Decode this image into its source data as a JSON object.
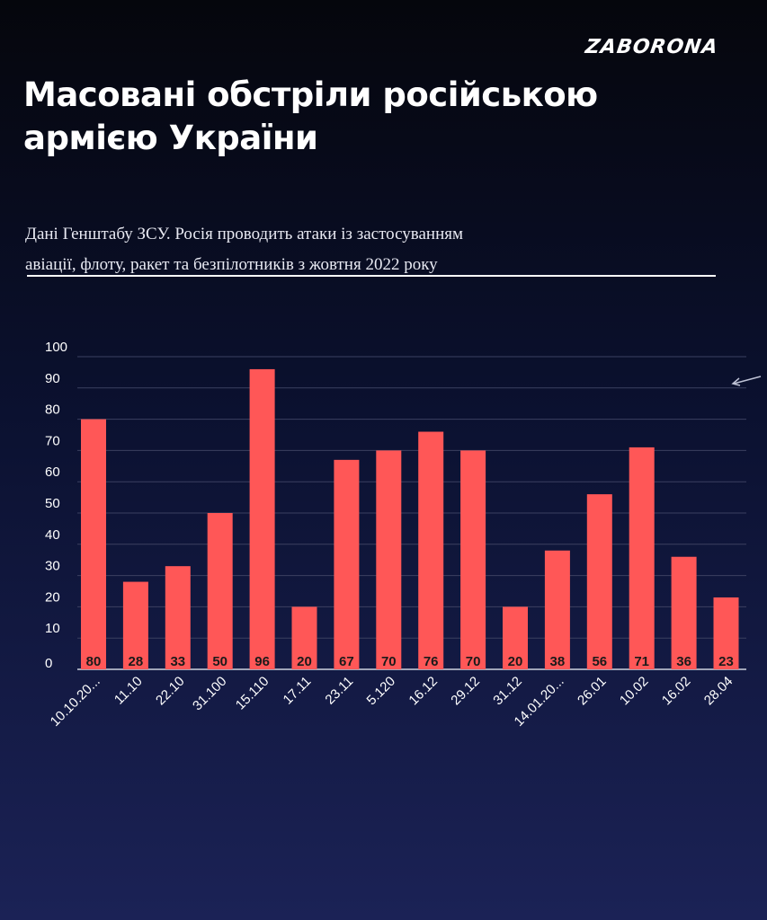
{
  "logo": "ZABORONA",
  "title_line1": "Масовані обстріли російською",
  "title_line2": "армією України",
  "subtitle_line1": "Дані Генштабу ЗСУ.  Росія проводить атаки із застосуванням",
  "subtitle_line2": "авіації, флоту, ракет та безпілотників з жовтня 2022 року",
  "colors": {
    "bar": "#ff5757",
    "text": "#ffffff",
    "grid": "#3b4060"
  },
  "chart_data": {
    "type": "bar",
    "categories": [
      "10.10.20...",
      "11.10",
      "22.10",
      "31.100",
      "15.110",
      "17.11",
      "23.11",
      "5.120",
      "16.12",
      "29.12",
      "31.12",
      "14.01.20...",
      "26.01",
      "10.02",
      "16.02",
      "28.04"
    ],
    "values": [
      80,
      28,
      33,
      50,
      96,
      20,
      67,
      70,
      76,
      70,
      20,
      38,
      56,
      71,
      36,
      23
    ],
    "y_ticks": [
      0,
      10,
      20,
      30,
      40,
      50,
      60,
      70,
      80,
      90,
      100
    ],
    "ylim": [
      0,
      100
    ],
    "grid": true,
    "data_labels": "inside-bottom"
  }
}
